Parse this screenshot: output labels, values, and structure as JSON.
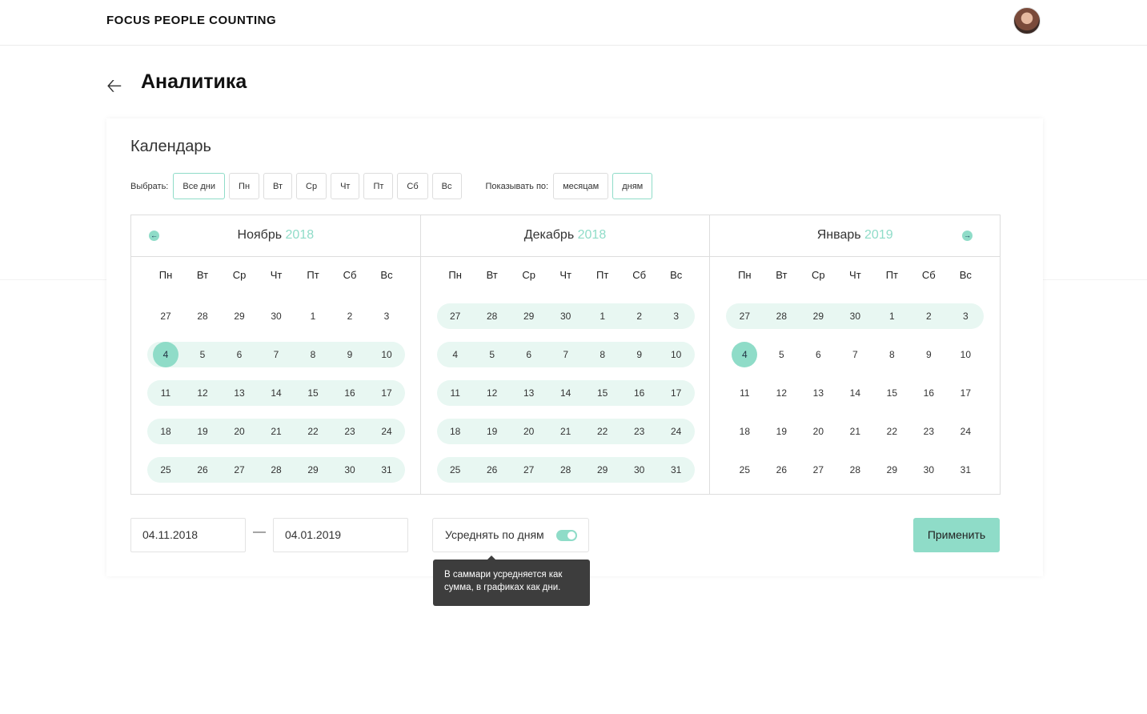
{
  "app": {
    "brand": "FOCUS PEOPLE COUNTING"
  },
  "page": {
    "title": "Аналитика",
    "back_icon": "arrow-left-icon"
  },
  "calendar": {
    "heading": "Календарь",
    "select_label": "Выбрать:",
    "day_filters": [
      "Все дни",
      "Пн",
      "Вт",
      "Ср",
      "Чт",
      "Пт",
      "Сб",
      "Вс"
    ],
    "day_filter_active": "Все дни",
    "show_by_label": "Показывать по:",
    "show_by": [
      "месяцам",
      "дням"
    ],
    "show_by_active": "дням",
    "weekdays": [
      "Пн",
      "Вт",
      "Ср",
      "Чт",
      "Пт",
      "Сб",
      "Вс"
    ],
    "accent": "#8fdcc8",
    "months": [
      {
        "name": "Ноябрь",
        "year": "2018",
        "weeks": [
          [
            "27",
            "28",
            "29",
            "30",
            "1",
            "2",
            "3"
          ],
          [
            "4",
            "5",
            "6",
            "7",
            "8",
            "9",
            "10"
          ],
          [
            "11",
            "12",
            "13",
            "14",
            "15",
            "16",
            "17"
          ],
          [
            "18",
            "19",
            "20",
            "21",
            "22",
            "23",
            "24"
          ],
          [
            "25",
            "26",
            "27",
            "28",
            "29",
            "30",
            "31"
          ]
        ],
        "rows": [
          "none",
          "start",
          "full",
          "full",
          "full"
        ]
      },
      {
        "name": "Декабрь",
        "year": "2018",
        "weeks": [
          [
            "27",
            "28",
            "29",
            "30",
            "1",
            "2",
            "3"
          ],
          [
            "4",
            "5",
            "6",
            "7",
            "8",
            "9",
            "10"
          ],
          [
            "11",
            "12",
            "13",
            "14",
            "15",
            "16",
            "17"
          ],
          [
            "18",
            "19",
            "20",
            "21",
            "22",
            "23",
            "24"
          ],
          [
            "25",
            "26",
            "27",
            "28",
            "29",
            "30",
            "31"
          ]
        ],
        "rows": [
          "full",
          "full",
          "full",
          "full",
          "full"
        ]
      },
      {
        "name": "Январь",
        "year": "2019",
        "weeks": [
          [
            "27",
            "28",
            "29",
            "30",
            "1",
            "2",
            "3"
          ],
          [
            "4",
            "5",
            "6",
            "7",
            "8",
            "9",
            "10"
          ],
          [
            "11",
            "12",
            "13",
            "14",
            "15",
            "16",
            "17"
          ],
          [
            "18",
            "19",
            "20",
            "21",
            "22",
            "23",
            "24"
          ],
          [
            "25",
            "26",
            "27",
            "28",
            "29",
            "30",
            "31"
          ]
        ],
        "rows": [
          "full",
          "end",
          "none",
          "none",
          "none"
        ]
      }
    ]
  },
  "range": {
    "from": "04.11.2018",
    "to": "04.01.2019",
    "separator": "—"
  },
  "average": {
    "label": "Усреднять по дням",
    "enabled": true,
    "tooltip": "В саммари усредняется как сумма, в графиках как дни."
  },
  "apply_label": "Применить"
}
